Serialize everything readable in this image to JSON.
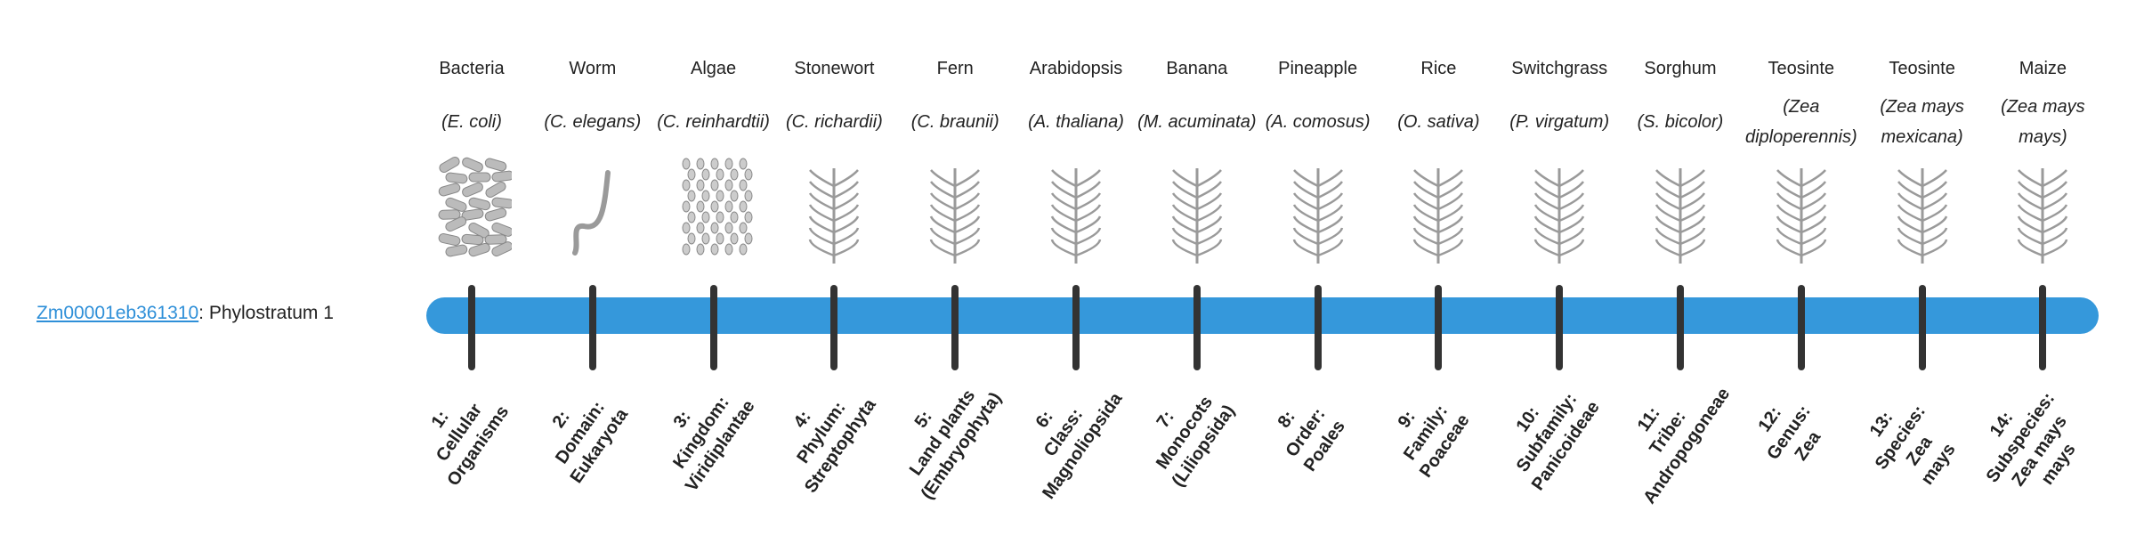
{
  "gene": {
    "id": "Zm00001eb361310",
    "suffix": ": Phylostratum 1"
  },
  "colors": {
    "bar": "#3598db",
    "tick": "#333333",
    "link": "#2e8fd8"
  },
  "organisms": [
    {
      "common": "Bacteria",
      "scientific": "(E. coli)",
      "icon": "bacteria-illustration",
      "stratum": "1:\nCellular\nOrganisms"
    },
    {
      "common": "Worm",
      "scientific": "(C. elegans)",
      "icon": "worm-illustration",
      "stratum": "2:\nDomain:\nEukaryota"
    },
    {
      "common": "Algae",
      "scientific": "(C. reinhardtii)",
      "icon": "algae-illustration",
      "stratum": "3:\nKingdom:\nViridiplantae"
    },
    {
      "common": "Stonewort",
      "scientific": "(C. richardii)",
      "icon": "stonewort-illustration",
      "stratum": "4:\nPhylum:\nStreptophyta"
    },
    {
      "common": "Fern",
      "scientific": "(C. braunii)",
      "icon": "fern-illustration",
      "stratum": "5:\nLand plants\n(Embryophyta)"
    },
    {
      "common": "Arabidopsis",
      "scientific": "(A. thaliana)",
      "icon": "arabidopsis-illustration",
      "stratum": "6:\nClass:\nMagnoliopsida"
    },
    {
      "common": "Banana",
      "scientific": "(M. acuminata)",
      "icon": "banana-illustration",
      "stratum": "7:\nMonocots\n(Liliopsida)"
    },
    {
      "common": "Pineapple",
      "scientific": "(A. comosus)",
      "icon": "pineapple-illustration",
      "stratum": "8:\nOrder:\nPoales"
    },
    {
      "common": "Rice",
      "scientific": "(O. sativa)",
      "icon": "rice-illustration",
      "stratum": "9:\nFamily:\nPoaceae"
    },
    {
      "common": "Switchgrass",
      "scientific": "(P. virgatum)",
      "icon": "switchgrass-illustration",
      "stratum": "10:\nSubfamily:\nPanicoideae"
    },
    {
      "common": "Sorghum",
      "scientific": "(S. bicolor)",
      "icon": "sorghum-illustration",
      "stratum": "11:\nTribe:\nAndropogoneae"
    },
    {
      "common": "Teosinte",
      "scientific": "(Zea diploperennis)",
      "icon": "teosinte-illustration",
      "stratum": "12:\nGenus:\nZea"
    },
    {
      "common": "Teosinte",
      "scientific": "(Zea mays mexicana)",
      "icon": "teosinte-illustration",
      "stratum": "13:\nSpecies:\nZea\nmays"
    },
    {
      "common": "Maize",
      "scientific": "(Zea mays mays)",
      "icon": "maize-illustration",
      "stratum": "14:\nSubspecies:\nZea mays\nmays"
    }
  ]
}
